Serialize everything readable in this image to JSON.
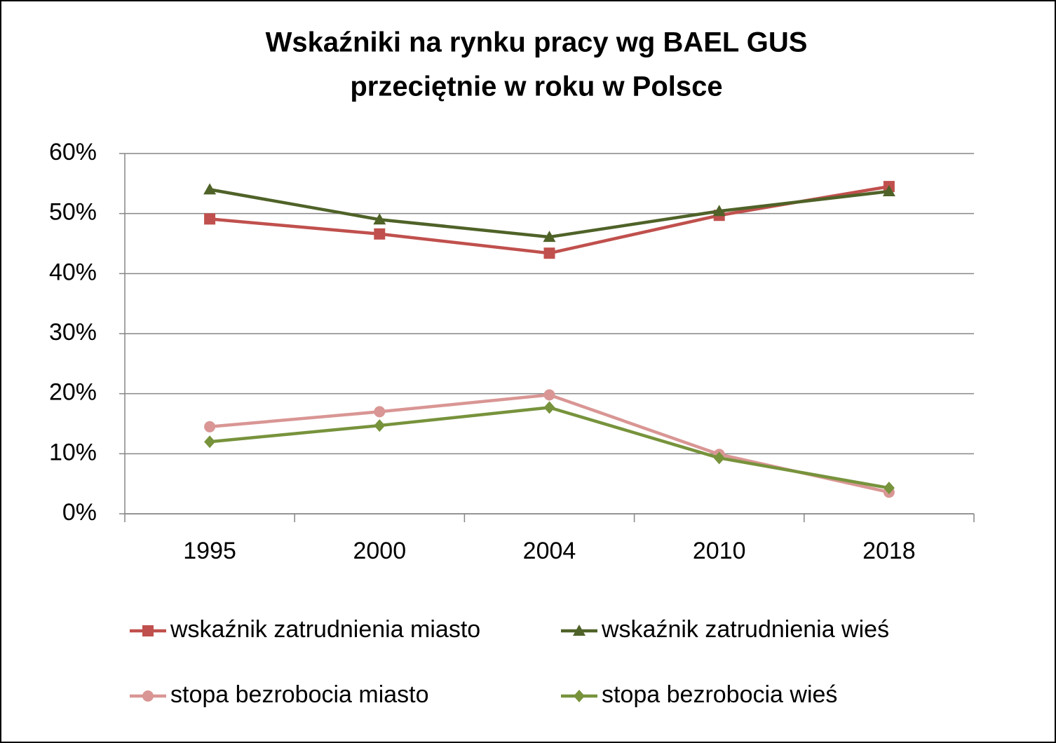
{
  "chart_data": {
    "type": "line",
    "title": [
      "Wskaźniki na rynku pracy wg BAEL GUS",
      "przeciętnie w roku w Polsce"
    ],
    "categories": [
      "1995",
      "2000",
      "2004",
      "2010",
      "2018"
    ],
    "series": [
      {
        "name": "wskaźnik zatrudnienia miasto",
        "color": "#c0504d",
        "marker": "square",
        "values": [
          49.1,
          46.6,
          43.4,
          49.7,
          54.5
        ]
      },
      {
        "name": "wskaźnik zatrudnienia wieś",
        "color": "#4f6228",
        "marker": "triangle",
        "values": [
          54.0,
          49.0,
          46.1,
          50.4,
          53.7
        ]
      },
      {
        "name": "stopa bezrobocia miasto",
        "color": "#d99694",
        "marker": "circle",
        "values": [
          14.5,
          17.0,
          19.8,
          9.9,
          3.6
        ]
      },
      {
        "name": "stopa bezrobocia wieś",
        "color": "#77933c",
        "marker": "diamond",
        "values": [
          12.0,
          14.7,
          17.7,
          9.3,
          4.3
        ]
      }
    ],
    "ylim": [
      0,
      60
    ],
    "yticks": [
      {
        "value": 0,
        "label": "0%"
      },
      {
        "value": 10,
        "label": "10%"
      },
      {
        "value": 20,
        "label": "20%"
      },
      {
        "value": 30,
        "label": "30%"
      },
      {
        "value": 40,
        "label": "40%"
      },
      {
        "value": 50,
        "label": "50%"
      },
      {
        "value": 60,
        "label": "60%"
      }
    ],
    "grid": true,
    "legend": "bottom"
  }
}
